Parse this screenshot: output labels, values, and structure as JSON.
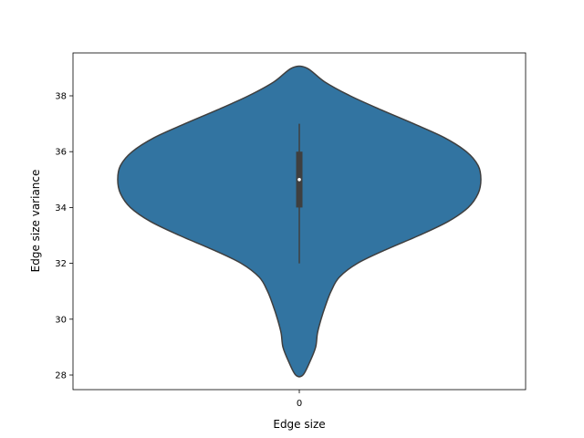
{
  "chart_data": {
    "type": "violin",
    "title": "",
    "xlabel": "Edge size",
    "ylabel": "Edge size variance",
    "categories": [
      "0"
    ],
    "ylim": [
      27.5,
      39.5
    ],
    "yticks": [
      28,
      30,
      32,
      34,
      36,
      38
    ],
    "grid": false,
    "legend": "none",
    "series": [
      {
        "category": "0",
        "color": "#3274a1",
        "min": 28,
        "max": 39,
        "q1": 34,
        "median": 35,
        "q3": 36,
        "whisker_low": 32,
        "whisker_high": 37,
        "density": [
          [
            28.0,
            0.02
          ],
          [
            28.5,
            0.06
          ],
          [
            29.0,
            0.09
          ],
          [
            29.5,
            0.1
          ],
          [
            30.0,
            0.12
          ],
          [
            30.5,
            0.145
          ],
          [
            31.0,
            0.175
          ],
          [
            31.5,
            0.22
          ],
          [
            32.0,
            0.32
          ],
          [
            32.5,
            0.48
          ],
          [
            33.0,
            0.66
          ],
          [
            33.5,
            0.82
          ],
          [
            34.0,
            0.93
          ],
          [
            34.5,
            0.985
          ],
          [
            35.0,
            1.0
          ],
          [
            35.5,
            0.985
          ],
          [
            36.0,
            0.92
          ],
          [
            36.5,
            0.8
          ],
          [
            37.0,
            0.63
          ],
          [
            37.5,
            0.45
          ],
          [
            38.0,
            0.28
          ],
          [
            38.5,
            0.14
          ],
          [
            39.0,
            0.04
          ]
        ]
      }
    ]
  }
}
